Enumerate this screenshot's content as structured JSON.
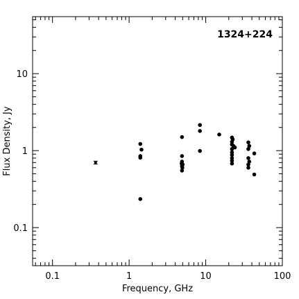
{
  "chart_data": {
    "type": "scatter",
    "source_label": "1324+224",
    "xlabel": "Frequency, GHz",
    "ylabel": "Flux Density, Jy",
    "x_scale": "log",
    "y_scale": "log",
    "xlim": [
      0.055,
      100
    ],
    "ylim": [
      0.032,
      55
    ],
    "x_ticks": [
      {
        "value": 0.1,
        "label": "0.1"
      },
      {
        "value": 1,
        "label": "1"
      },
      {
        "value": 10,
        "label": "10"
      },
      {
        "value": 100,
        "label": "100"
      }
    ],
    "y_ticks": [
      {
        "value": 0.1,
        "label": "0.1"
      },
      {
        "value": 1,
        "label": "1"
      },
      {
        "value": 10,
        "label": "10"
      }
    ],
    "grid": false,
    "errorbar_points": [
      {
        "x": 0.365,
        "y": 0.7,
        "yerr_low": 0.67,
        "yerr_high": 0.73
      }
    ],
    "points": [
      {
        "x": 1.4,
        "y": 1.22
      },
      {
        "x": 1.45,
        "y": 1.03
      },
      {
        "x": 1.4,
        "y": 0.85
      },
      {
        "x": 1.4,
        "y": 0.81
      },
      {
        "x": 1.4,
        "y": 0.235
      },
      {
        "x": 4.9,
        "y": 1.5
      },
      {
        "x": 4.9,
        "y": 0.85
      },
      {
        "x": 4.9,
        "y": 0.72
      },
      {
        "x": 4.85,
        "y": 0.68
      },
      {
        "x": 5.0,
        "y": 0.66
      },
      {
        "x": 4.9,
        "y": 0.63
      },
      {
        "x": 4.95,
        "y": 0.6
      },
      {
        "x": 4.9,
        "y": 0.55
      },
      {
        "x": 8.4,
        "y": 2.15
      },
      {
        "x": 8.4,
        "y": 1.8
      },
      {
        "x": 8.4,
        "y": 0.99
      },
      {
        "x": 15,
        "y": 1.62
      },
      {
        "x": 22,
        "y": 1.48
      },
      {
        "x": 22.5,
        "y": 1.4
      },
      {
        "x": 22,
        "y": 1.3
      },
      {
        "x": 22,
        "y": 1.2
      },
      {
        "x": 23,
        "y": 1.15
      },
      {
        "x": 22,
        "y": 1.05
      },
      {
        "x": 22,
        "y": 0.95
      },
      {
        "x": 22,
        "y": 0.88
      },
      {
        "x": 22,
        "y": 0.8
      },
      {
        "x": 22,
        "y": 0.74
      },
      {
        "x": 22,
        "y": 0.68
      },
      {
        "x": 24,
        "y": 1.1
      },
      {
        "x": 36,
        "y": 1.28
      },
      {
        "x": 37,
        "y": 1.15
      },
      {
        "x": 36,
        "y": 1.05
      },
      {
        "x": 36,
        "y": 0.8
      },
      {
        "x": 37,
        "y": 0.72
      },
      {
        "x": 36,
        "y": 0.66
      },
      {
        "x": 36,
        "y": 0.6
      },
      {
        "x": 43,
        "y": 0.92
      },
      {
        "x": 43,
        "y": 0.49
      }
    ]
  }
}
